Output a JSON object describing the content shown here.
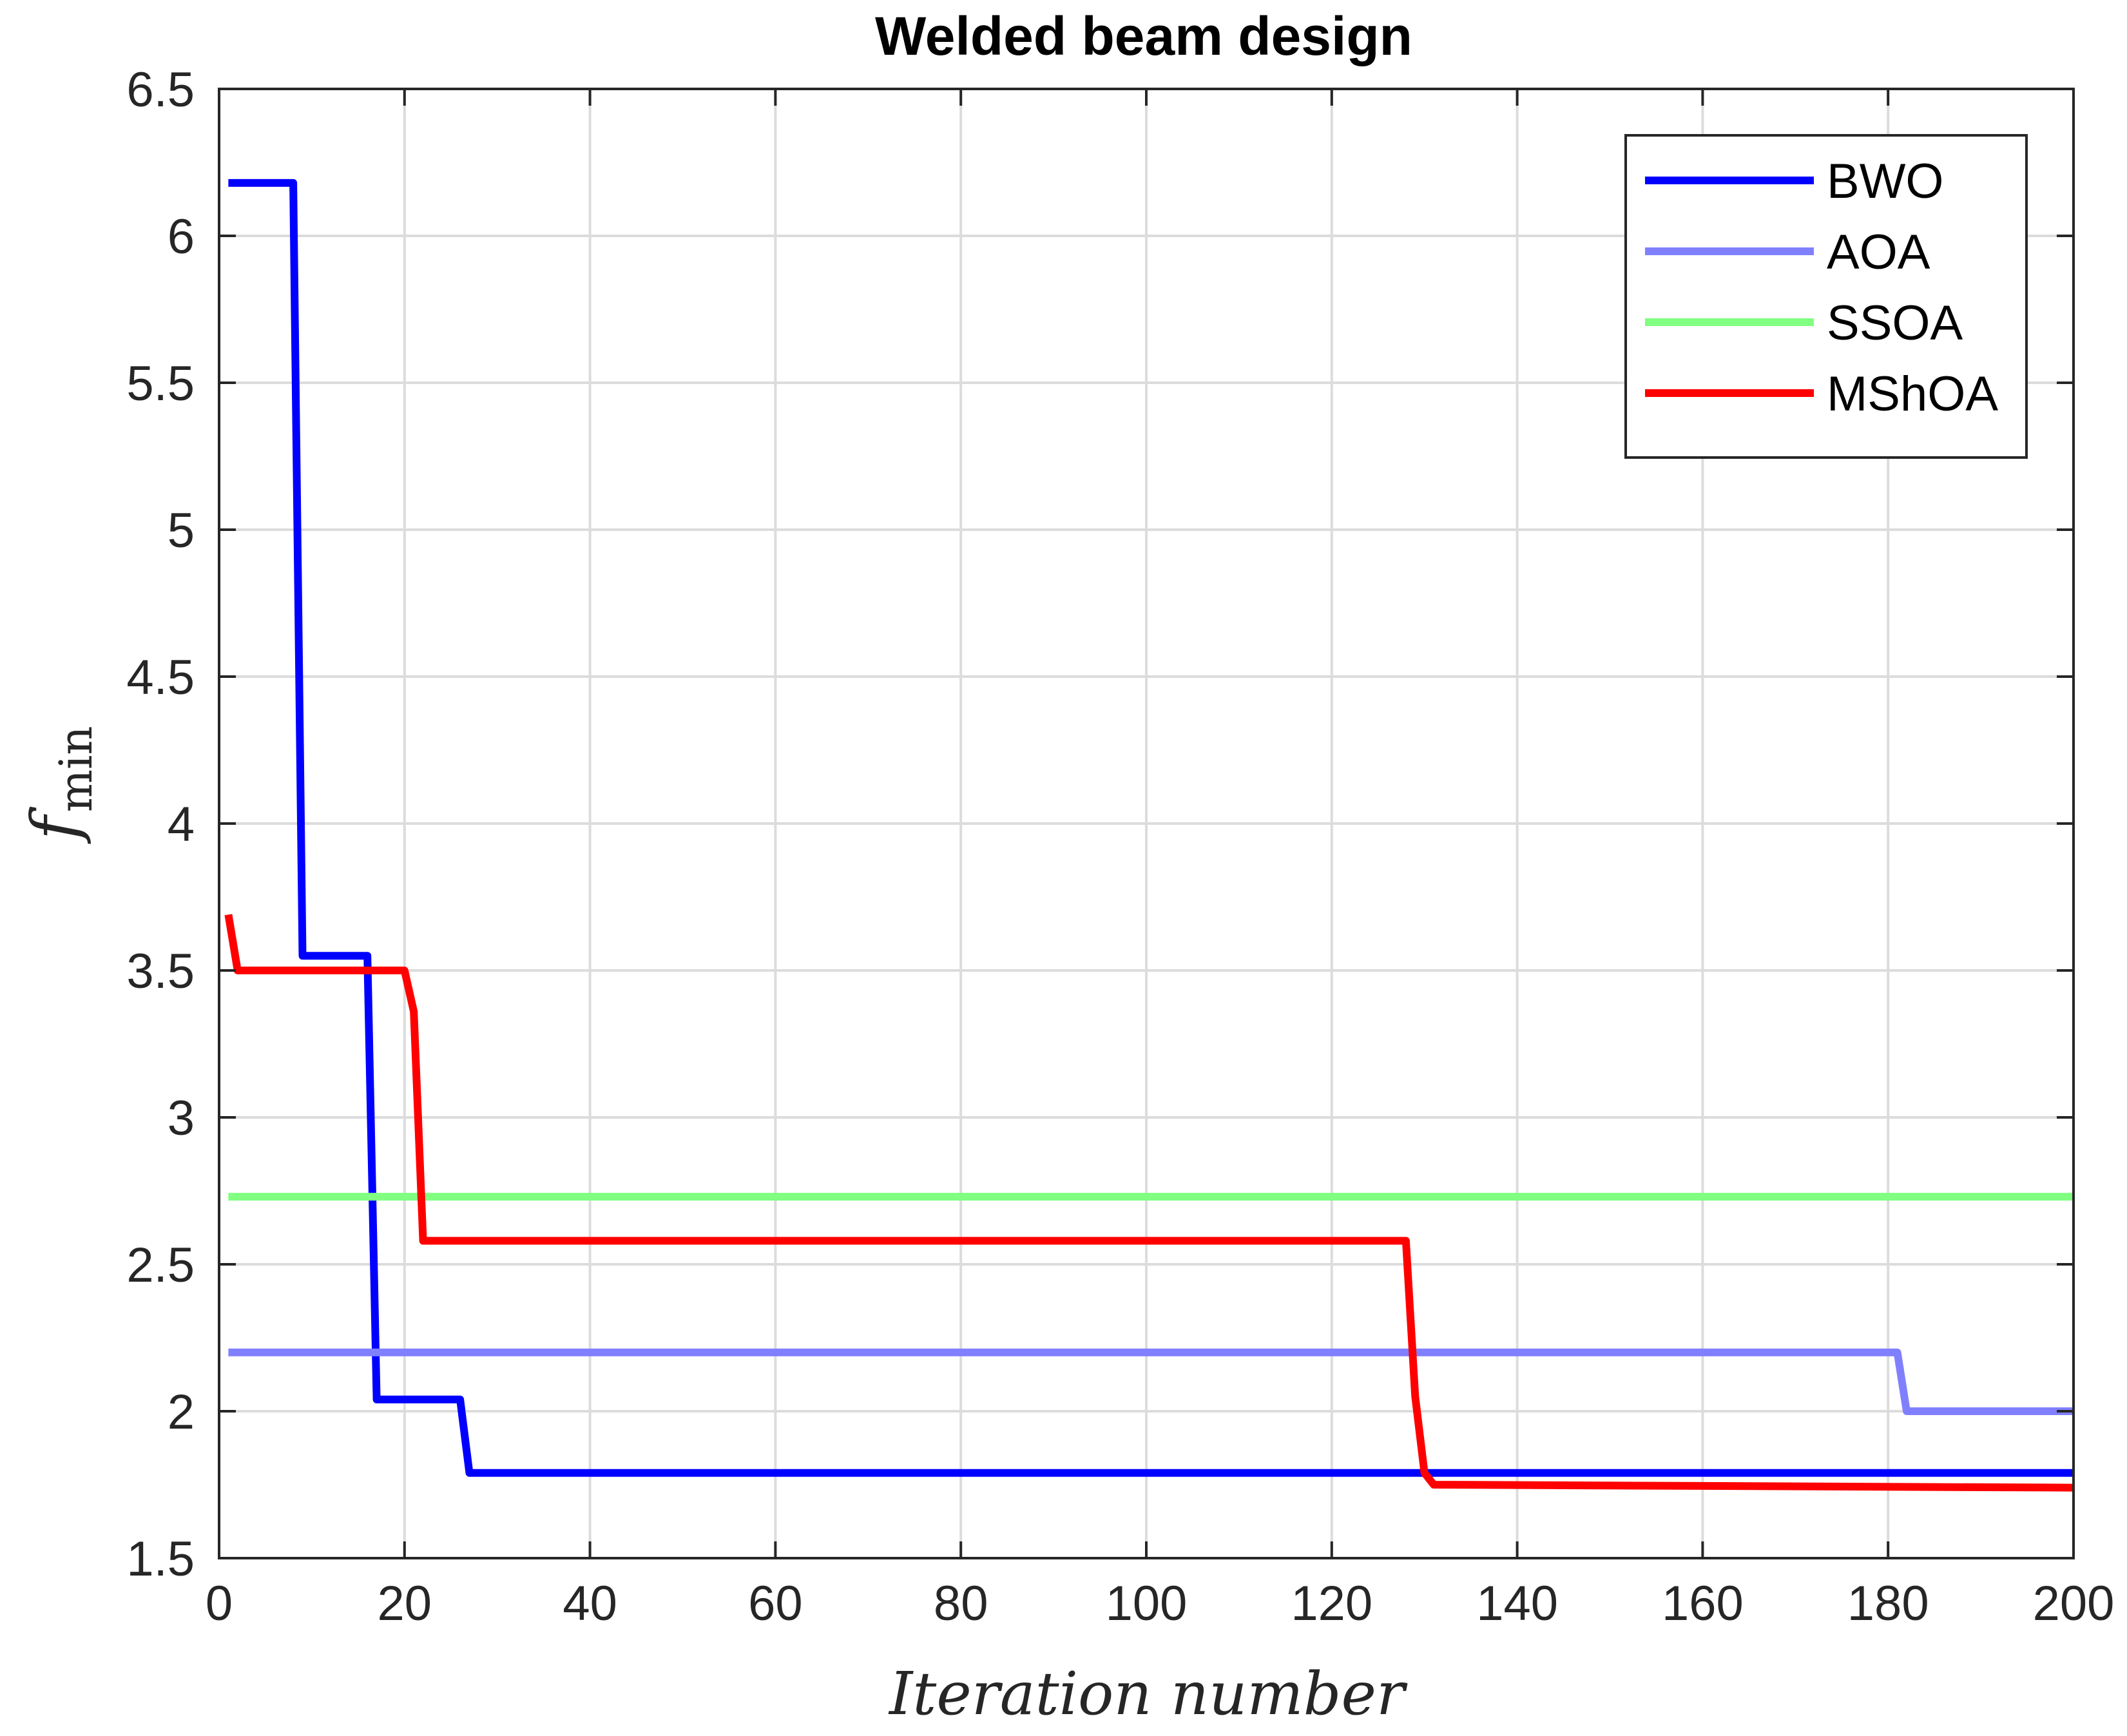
{
  "chart_data": {
    "type": "line",
    "title": "Welded beam design",
    "xlabel": "Iteration number",
    "ylabel": "f",
    "ylabel_sub": "min",
    "xlim": [
      0,
      200
    ],
    "ylim": [
      1.5,
      6.5
    ],
    "xticks": [
      0,
      20,
      40,
      60,
      80,
      100,
      120,
      140,
      160,
      180,
      200
    ],
    "yticks": [
      1.5,
      2,
      2.5,
      3,
      3.5,
      4,
      4.5,
      5,
      5.5,
      6,
      6.5
    ],
    "xtick_labels": [
      "0",
      "20",
      "40",
      "60",
      "80",
      "100",
      "120",
      "140",
      "160",
      "180",
      "200"
    ],
    "ytick_labels": [
      "1.5",
      "2",
      "2.5",
      "3",
      "3.5",
      "4",
      "4.5",
      "5",
      "5.5",
      "6",
      "6.5"
    ],
    "grid": true,
    "legend_position": "top-right",
    "series": [
      {
        "name": "BWO",
        "color": "#0000ff",
        "x": [
          1,
          8,
          9,
          16,
          17,
          26,
          27,
          200
        ],
        "y": [
          6.18,
          6.18,
          3.55,
          3.55,
          2.04,
          2.04,
          1.79,
          1.79
        ]
      },
      {
        "name": "AOA",
        "color": "#8080ff",
        "x": [
          1,
          181,
          182,
          200
        ],
        "y": [
          2.2,
          2.2,
          2.0,
          2.0
        ]
      },
      {
        "name": "SSOA",
        "color": "#80ff80",
        "x": [
          1,
          200
        ],
        "y": [
          2.73,
          2.73
        ]
      },
      {
        "name": "MShOA",
        "color": "#ff0000",
        "x": [
          1,
          2,
          20,
          21,
          22,
          128,
          129,
          130,
          131,
          200
        ],
        "y": [
          3.69,
          3.5,
          3.5,
          3.36,
          2.58,
          2.58,
          2.05,
          1.79,
          1.75,
          1.74
        ]
      }
    ]
  }
}
